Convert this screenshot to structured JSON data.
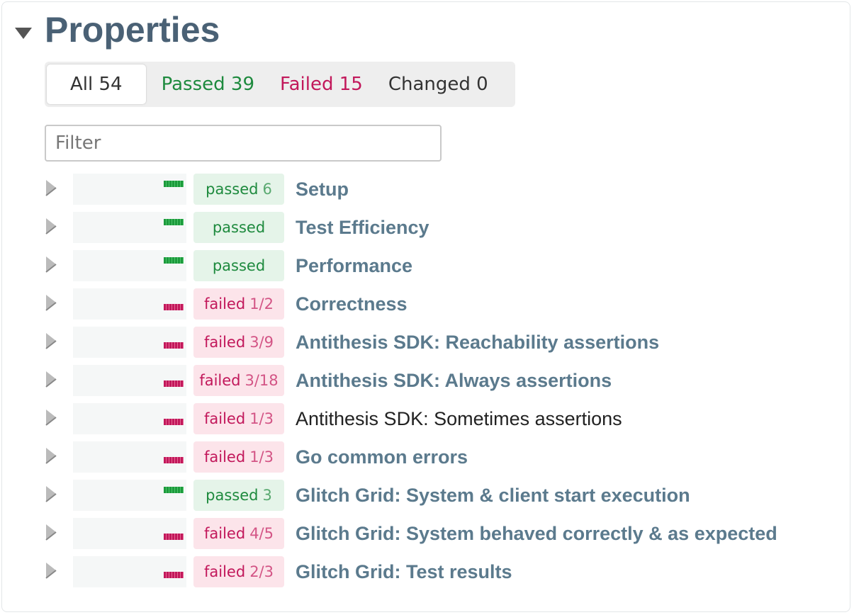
{
  "header": {
    "title": "Properties"
  },
  "tabs": [
    {
      "label": "All",
      "count": 54
    },
    {
      "label": "Passed",
      "count": 39
    },
    {
      "label": "Failed",
      "count": 15
    },
    {
      "label": "Changed",
      "count": 0
    }
  ],
  "filter": {
    "placeholder": "Filter"
  },
  "rows": [
    {
      "status": "passed",
      "detail": "6",
      "name": "Setup"
    },
    {
      "status": "passed",
      "name": "Test Efficiency"
    },
    {
      "status": "passed",
      "name": "Performance"
    },
    {
      "status": "failed",
      "detail": "1/2",
      "name": "Correctness"
    },
    {
      "status": "failed",
      "detail": "3/9",
      "name": "Antithesis SDK: Reachability assertions"
    },
    {
      "status": "failed",
      "detail": "3/18",
      "name": "Antithesis SDK: Always assertions"
    },
    {
      "status": "failed",
      "detail": "1/3",
      "name": "Antithesis SDK: Sometimes assertions"
    },
    {
      "status": "failed",
      "detail": "1/3",
      "name": "Go common errors"
    },
    {
      "status": "passed",
      "detail": "3",
      "name": "Glitch Grid: System & client start execution"
    },
    {
      "status": "failed",
      "detail": "4/5",
      "name": "Glitch Grid: System behaved correctly & as expected"
    },
    {
      "status": "failed",
      "detail": "2/3",
      "name": "Glitch Grid: Test results"
    }
  ]
}
